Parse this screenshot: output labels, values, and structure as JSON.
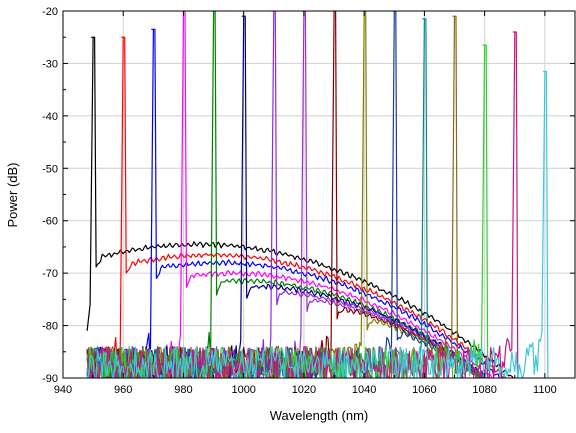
{
  "chart_data": {
    "type": "line",
    "title": "",
    "xlabel": "Wavelength (nm)",
    "ylabel": "Power (dB)",
    "xlim": [
      940,
      1110
    ],
    "ylim": [
      -90,
      -20
    ],
    "xticks": [
      940,
      960,
      980,
      1000,
      1020,
      1040,
      1060,
      1080,
      1100
    ],
    "yticks": [
      -90,
      -80,
      -70,
      -60,
      -50,
      -40,
      -30,
      -20
    ],
    "grid": true,
    "legend": "none",
    "series": [
      {
        "color": "#000000",
        "peak_x": 950,
        "peak_y": -25,
        "floor_peak_y": -64.5
      },
      {
        "color": "#ff0000",
        "peak_x": 960,
        "peak_y": -25,
        "floor_peak_y": -66.5
      },
      {
        "color": "#0000ff",
        "peak_x": 970,
        "peak_y": -23.5,
        "floor_peak_y": -68
      },
      {
        "color": "#ff00ff",
        "peak_x": 980,
        "peak_y": -20,
        "floor_peak_y": -70
      },
      {
        "color": "#008000",
        "peak_x": 990,
        "peak_y": -20,
        "floor_peak_y": -71.5
      },
      {
        "color": "#000080",
        "peak_x": 1000,
        "peak_y": -21,
        "floor_peak_y": -72.5
      },
      {
        "color": "#8a2be2",
        "peak_x": 1010,
        "peak_y": -20,
        "floor_peak_y": -73.5
      },
      {
        "color": "#9932cc",
        "peak_x": 1020,
        "peak_y": -20,
        "floor_peak_y": -74.5
      },
      {
        "color": "#800000",
        "peak_x": 1030,
        "peak_y": -20,
        "floor_peak_y": -75.5
      },
      {
        "color": "#808000",
        "peak_x": 1040,
        "peak_y": -20,
        "floor_peak_y": -76.5
      },
      {
        "color": "#1e3c96",
        "peak_x": 1050,
        "peak_y": -20,
        "floor_peak_y": -77.5
      },
      {
        "color": "#008b8b",
        "peak_x": 1060,
        "peak_y": -21.5,
        "floor_peak_y": -78.5
      },
      {
        "color": "#8b6914",
        "peak_x": 1070,
        "peak_y": -21,
        "floor_peak_y": -79.5
      },
      {
        "color": "#32cd32",
        "peak_x": 1080,
        "peak_y": -26.5,
        "floor_peak_y": -80.5
      },
      {
        "color": "#c71585",
        "peak_x": 1090,
        "peak_y": -24,
        "floor_peak_y": -81.5
      },
      {
        "color": "#40c8d8",
        "peak_x": 1100,
        "peak_y": -31.5,
        "floor_peak_y": -82
      }
    ]
  }
}
